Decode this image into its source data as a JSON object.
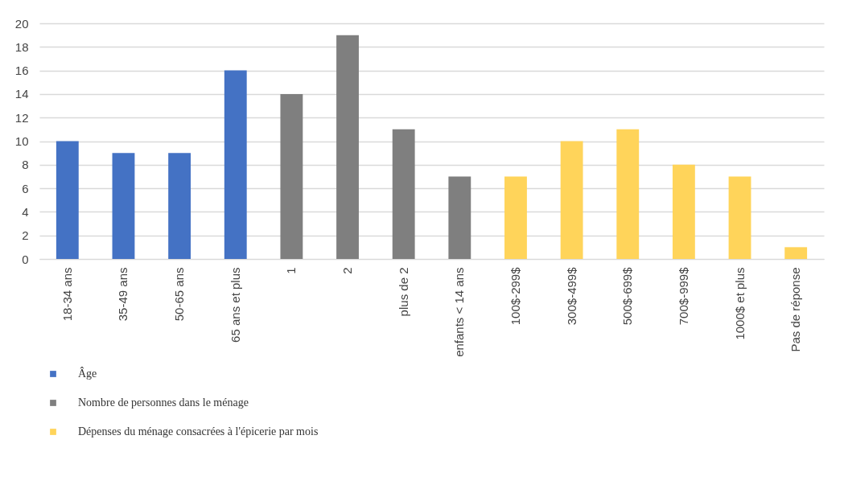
{
  "chart_data": {
    "type": "bar",
    "categories": [
      "18-34 ans",
      "35-49 ans",
      "50-65 ans",
      "65 ans et plus",
      "1",
      "2",
      "plus de 2",
      "enfants < 14 ans",
      "100$-299$",
      "300$-499$",
      "500$-699$",
      "700$-999$",
      "1000$ et plus",
      "Pas de réponse"
    ],
    "series": [
      {
        "name": "Âge",
        "color": "#4472c4",
        "values": [
          10,
          9,
          9,
          16,
          null,
          null,
          null,
          null,
          null,
          null,
          null,
          null,
          null,
          null
        ]
      },
      {
        "name": "Nombre de personnes dans le ménage",
        "color": "#7f7f7f",
        "values": [
          null,
          null,
          null,
          null,
          14,
          19,
          11,
          7,
          null,
          null,
          null,
          null,
          null,
          null
        ]
      },
      {
        "name": "Dépenses du ménage consacrées à l'épicerie par mois",
        "color": "#ffd45a",
        "values": [
          null,
          null,
          null,
          null,
          null,
          null,
          null,
          null,
          7,
          10,
          11,
          8,
          7,
          1
        ]
      }
    ],
    "ylim": [
      0,
      20
    ],
    "yticks": [
      0,
      2,
      4,
      6,
      8,
      10,
      12,
      14,
      16,
      18,
      20
    ],
    "grid": "y",
    "legend": "bottom left"
  }
}
